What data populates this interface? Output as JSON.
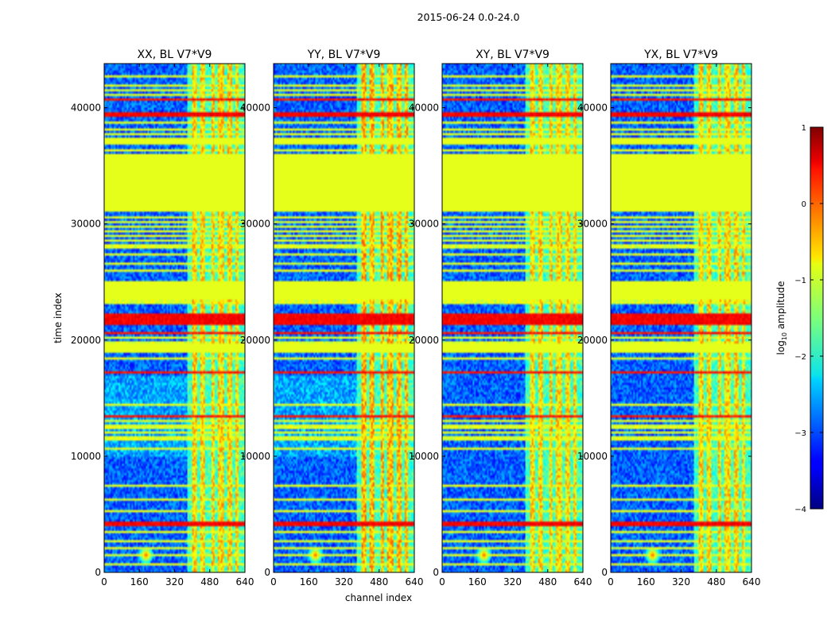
{
  "chart_data": {
    "type": "heatmap",
    "suptitle": "2015-06-24 0.0-24.0",
    "xlabel": "channel index",
    "ylabel": "time index",
    "xlim": [
      0,
      640
    ],
    "ylim": [
      0,
      43800
    ],
    "x_ticks": [
      0,
      160,
      320,
      480,
      640
    ],
    "y_ticks": [
      0,
      10000,
      20000,
      30000,
      40000
    ],
    "panels": [
      {
        "title": "XX, BL V7*V9",
        "variant": 0
      },
      {
        "title": "YY, BL V7*V9",
        "variant": 1
      },
      {
        "title": "XY, BL V7*V9",
        "variant": 2
      },
      {
        "title": "YX, BL V7*V9",
        "variant": 3
      }
    ],
    "colorbar": {
      "label_main": "log",
      "label_sub": "10",
      "label_tail": " amplitude",
      "min": -4,
      "max": 1,
      "ticks": [
        1,
        0,
        -1,
        -2,
        -3,
        -4
      ],
      "tick_labels": [
        "1",
        "0",
        "−1",
        "−2",
        "−3",
        "−4"
      ],
      "colormap": "jet"
    },
    "background_level": -2.9,
    "flagged_time_ranges": [
      {
        "start": 18900,
        "end": 19700,
        "value": -1.0
      },
      {
        "start": 23400,
        "end": 25000,
        "value": -1.0
      },
      {
        "start": 31000,
        "end": 36000,
        "value": -1.0
      },
      {
        "start": 36800,
        "end": 37500,
        "value": -1.0
      }
    ],
    "rfi_time_ranges": [
      {
        "start": 3900,
        "end": 4300,
        "value": 0.4
      },
      {
        "start": 21400,
        "end": 22300,
        "value": 0.4
      },
      {
        "start": 39200,
        "end": 39700,
        "value": 0.4
      },
      {
        "start": 40600,
        "end": 40800,
        "value": 0.3
      },
      {
        "start": 17150,
        "end": 17300,
        "value": 0.3
      },
      {
        "start": 13300,
        "end": 13450,
        "value": 0.3
      },
      {
        "start": 20500,
        "end": 20650,
        "value": 0.3
      },
      {
        "start": 22600,
        "end": 22750,
        "value": 0.2
      }
    ],
    "line_time_indices": [
      700,
      1400,
      2000,
      2600,
      3400,
      5200,
      6300,
      7500,
      10600,
      11400,
      11700,
      12000,
      12400,
      12700,
      13000,
      14500,
      18400,
      19900,
      20300,
      23100,
      23300,
      26000,
      26500,
      27300,
      27900,
      28200,
      28600,
      29000,
      29400,
      29800,
      30200,
      30600,
      36300,
      37800,
      38200,
      38700,
      41200,
      41500,
      42000,
      42800
    ],
    "hot_channel_ranges": [
      [
        400,
        420
      ],
      [
        440,
        460
      ],
      [
        490,
        505
      ],
      [
        520,
        545
      ],
      [
        560,
        580
      ],
      [
        600,
        610
      ]
    ],
    "source_blob": {
      "channel": 190,
      "time": 1500,
      "peak": 0.0
    }
  }
}
